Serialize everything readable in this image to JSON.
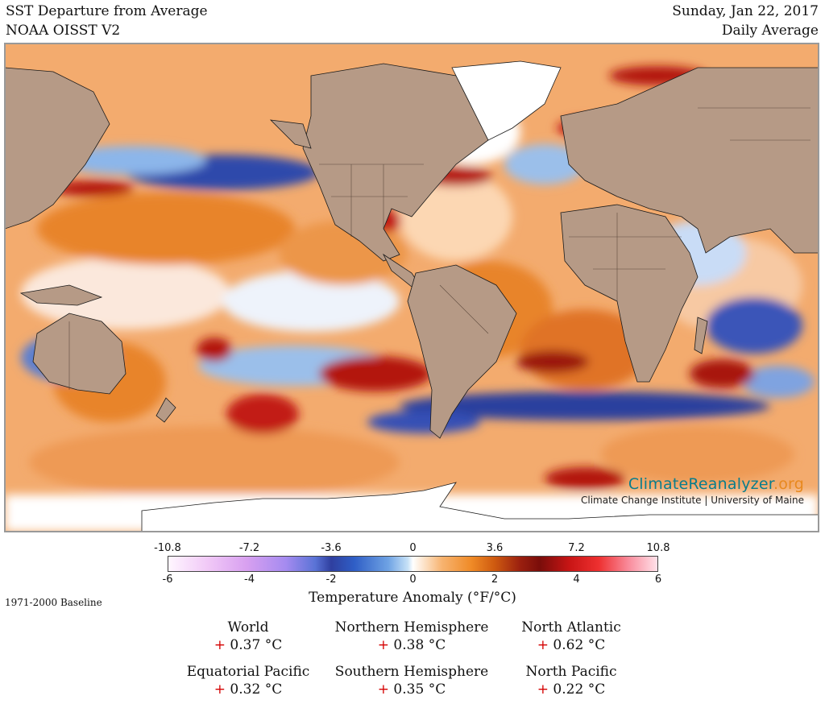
{
  "header": {
    "title": "SST Departure from Average",
    "dataset": "NOAA OISST V2",
    "date": "Sunday, Jan 22, 2017",
    "period": "Daily Average"
  },
  "brand": {
    "name_part1": "ClimateReanalyzer",
    "name_part2": ".org",
    "subtitle": "Climate Change Institute | University of Maine"
  },
  "legend": {
    "fahrenheit_ticks": [
      "-10.8",
      "-7.2",
      "-3.6",
      "0",
      "3.6",
      "7.2",
      "10.8"
    ],
    "celsius_ticks": [
      "-6",
      "-4",
      "-2",
      "0",
      "2",
      "4",
      "6"
    ],
    "axis_title": "Temperature Anomaly (°F/°C)",
    "baseline": "1971-2000 Baseline"
  },
  "stats": [
    {
      "region": "World",
      "sign": "+",
      "value": "0.37 °C"
    },
    {
      "region": "Northern Hemisphere",
      "sign": "+",
      "value": "0.38 °C"
    },
    {
      "region": "North Atlantic",
      "sign": "+",
      "value": "0.62 °C"
    },
    {
      "region": "Equatorial Pacific",
      "sign": "+",
      "value": "0.32 °C"
    },
    {
      "region": "Southern Hemisphere",
      "sign": "+",
      "value": "0.35 °C"
    },
    {
      "region": "North Pacific",
      "sign": "+",
      "value": "0.22 °C"
    }
  ],
  "colors": {
    "land": "#b69a86",
    "warm": "#e8842c",
    "hot": "#b3170f",
    "cool": "#8cb6ea",
    "cold": "#2b3f9e",
    "ice": "#ffffff",
    "logo_teal": "#0a7d8c",
    "logo_orange": "#e8891f",
    "plus_sign": "#d40000"
  }
}
